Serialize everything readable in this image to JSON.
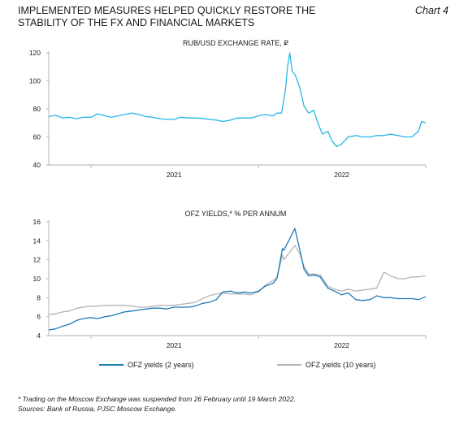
{
  "header": {
    "title": "IMPLEMENTED MEASURES HELPED QUICKLY RESTORE THE STABILITY OF THE FX AND FINANCIAL MARKETS",
    "chart_number": "Chart 4"
  },
  "footnotes": {
    "note": "* Trading on the Moscow Exchange was suspended from 26 February until 19 March 2022.",
    "sources": "Sources: Bank of Russia, PJSC Moscow Exchange."
  },
  "colors": {
    "blue_2y": "#1d7ab8",
    "grey_10y": "#b4b4b4",
    "cyan_rub": "#29b6e6",
    "axis": "#888888"
  },
  "chart_data": [
    {
      "type": "line",
      "title": "RUB/USD EXCHANGE RATE, ₽",
      "x_tick_labels": [
        "2021",
        "2022"
      ],
      "ylim": [
        40,
        120
      ],
      "yticks": [
        40,
        60,
        80,
        100,
        120
      ],
      "series": [
        {
          "color": "#29b6e6",
          "x": [
            "2020-10-01",
            "2020-10-15",
            "2020-11-01",
            "2020-11-15",
            "2020-12-01",
            "2020-12-15",
            "2021-01-01",
            "2021-01-15",
            "2021-02-01",
            "2021-02-15",
            "2021-03-01",
            "2021-03-15",
            "2021-04-01",
            "2021-04-15",
            "2021-05-01",
            "2021-05-15",
            "2021-06-01",
            "2021-06-15",
            "2021-07-01",
            "2021-07-15",
            "2021-08-01",
            "2021-08-15",
            "2021-09-01",
            "2021-09-15",
            "2021-10-01",
            "2021-10-15",
            "2021-11-01",
            "2021-11-15",
            "2021-12-01",
            "2021-12-15",
            "2022-01-01",
            "2022-01-15",
            "2022-02-01",
            "2022-02-10",
            "2022-02-20",
            "2022-02-24",
            "2022-03-01",
            "2022-03-05",
            "2022-03-10",
            "2022-03-15",
            "2022-03-22",
            "2022-04-01",
            "2022-04-10",
            "2022-04-20",
            "2022-05-01",
            "2022-05-10",
            "2022-05-20",
            "2022-06-01",
            "2022-06-10",
            "2022-06-20",
            "2022-07-01",
            "2022-07-15",
            "2022-08-01",
            "2022-08-15",
            "2022-09-01",
            "2022-09-15",
            "2022-10-01",
            "2022-10-15",
            "2022-11-01",
            "2022-11-15",
            "2022-12-01",
            "2022-12-15",
            "2022-12-22",
            "2022-12-31"
          ],
          "y": [
            74.5,
            75.5,
            73.5,
            74,
            73,
            74,
            74,
            76.5,
            75,
            74,
            75,
            76,
            77,
            76,
            74.5,
            74,
            73,
            72.5,
            72.5,
            74,
            73.5,
            73.5,
            73.2,
            72.5,
            72,
            71,
            72,
            73.5,
            73.5,
            73.5,
            75,
            76,
            75,
            77,
            77,
            85,
            95,
            110,
            120,
            107,
            104,
            95,
            82,
            77,
            79,
            70,
            62,
            64,
            57,
            53,
            55,
            60,
            61,
            60,
            60,
            61,
            61,
            62,
            61,
            60,
            60,
            64,
            71,
            70
          ]
        }
      ]
    },
    {
      "type": "line",
      "title": "OFZ YIELDS,* % PER ANNUM",
      "x_tick_labels": [
        "2021",
        "2022"
      ],
      "ylim": [
        4,
        16
      ],
      "yticks": [
        4,
        6,
        8,
        10,
        12,
        14,
        16
      ],
      "legend_position": "bottom",
      "series": [
        {
          "name": "OFZ yields (2 years)",
          "color": "#1d7ab8",
          "x": [
            "2020-10-01",
            "2020-10-15",
            "2020-11-01",
            "2020-11-15",
            "2020-12-01",
            "2020-12-15",
            "2021-01-01",
            "2021-01-15",
            "2021-02-01",
            "2021-02-15",
            "2021-03-01",
            "2021-03-15",
            "2021-04-01",
            "2021-04-15",
            "2021-05-01",
            "2021-05-15",
            "2021-06-01",
            "2021-06-15",
            "2021-07-01",
            "2021-07-15",
            "2021-08-01",
            "2021-08-15",
            "2021-09-01",
            "2021-09-15",
            "2021-10-01",
            "2021-10-15",
            "2021-11-01",
            "2021-11-15",
            "2021-12-01",
            "2021-12-15",
            "2022-01-01",
            "2022-01-15",
            "2022-02-01",
            "2022-02-10",
            "2022-02-22",
            "2022-02-25",
            "2022-03-21",
            "2022-04-01",
            "2022-04-10",
            "2022-04-20",
            "2022-05-01",
            "2022-05-15",
            "2022-06-01",
            "2022-06-15",
            "2022-07-01",
            "2022-07-15",
            "2022-08-01",
            "2022-08-15",
            "2022-09-01",
            "2022-09-15",
            "2022-10-01",
            "2022-10-15",
            "2022-11-01",
            "2022-11-15",
            "2022-12-01",
            "2022-12-15",
            "2022-12-31"
          ],
          "y": [
            4.6,
            4.7,
            5.0,
            5.2,
            5.6,
            5.8,
            5.9,
            5.8,
            6.0,
            6.1,
            6.3,
            6.5,
            6.6,
            6.7,
            6.8,
            6.9,
            6.9,
            6.8,
            7.0,
            7.0,
            7.0,
            7.1,
            7.4,
            7.5,
            7.8,
            8.6,
            8.7,
            8.5,
            8.6,
            8.5,
            8.7,
            9.2,
            9.5,
            10.0,
            13.2,
            13.0,
            15.3,
            13.0,
            11.0,
            10.3,
            10.4,
            10.2,
            9.0,
            8.7,
            8.3,
            8.5,
            7.8,
            7.7,
            7.8,
            8.2,
            8.0,
            8.0,
            7.9,
            7.9,
            7.9,
            7.8,
            8.1
          ]
        },
        {
          "name": "OFZ yields (10 years)",
          "color": "#b4b4b4",
          "x": [
            "2020-10-01",
            "2020-10-15",
            "2020-11-01",
            "2020-11-15",
            "2020-12-01",
            "2020-12-15",
            "2021-01-01",
            "2021-01-15",
            "2021-02-01",
            "2021-02-15",
            "2021-03-01",
            "2021-03-15",
            "2021-04-01",
            "2021-04-15",
            "2021-05-01",
            "2021-05-15",
            "2021-06-01",
            "2021-06-15",
            "2021-07-01",
            "2021-07-15",
            "2021-08-01",
            "2021-08-15",
            "2021-09-01",
            "2021-09-15",
            "2021-10-01",
            "2021-10-15",
            "2021-11-01",
            "2021-11-15",
            "2021-12-01",
            "2021-12-15",
            "2022-01-01",
            "2022-01-15",
            "2022-02-01",
            "2022-02-10",
            "2022-02-22",
            "2022-02-25",
            "2022-03-21",
            "2022-04-01",
            "2022-04-10",
            "2022-04-20",
            "2022-05-01",
            "2022-05-15",
            "2022-06-01",
            "2022-06-15",
            "2022-07-01",
            "2022-07-15",
            "2022-08-01",
            "2022-08-15",
            "2022-09-01",
            "2022-09-15",
            "2022-10-01",
            "2022-10-15",
            "2022-11-01",
            "2022-11-15",
            "2022-12-01",
            "2022-12-15",
            "2022-12-31"
          ],
          "y": [
            6.2,
            6.3,
            6.5,
            6.6,
            6.9,
            7.0,
            7.1,
            7.1,
            7.2,
            7.2,
            7.2,
            7.2,
            7.1,
            7.0,
            7.0,
            7.1,
            7.2,
            7.2,
            7.2,
            7.3,
            7.4,
            7.5,
            7.9,
            8.2,
            8.4,
            8.5,
            8.4,
            8.4,
            8.4,
            8.3,
            8.6,
            9.3,
            9.8,
            10.2,
            12.5,
            12.0,
            13.5,
            12.6,
            11.3,
            10.5,
            10.5,
            10.4,
            9.2,
            8.9,
            8.7,
            8.9,
            8.7,
            8.8,
            8.9,
            9.0,
            10.7,
            10.3,
            10.0,
            10.0,
            10.2,
            10.2,
            10.3
          ]
        }
      ]
    }
  ]
}
